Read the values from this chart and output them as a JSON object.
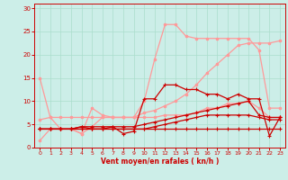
{
  "background_color": "#cceee8",
  "grid_color": "#aaddcc",
  "line_color_light": "#ff8888",
  "line_color_dark": "#dd0000",
  "xlabel": "Vent moyen/en rafales ( kn/h )",
  "xlabel_color": "#cc0000",
  "tick_color": "#cc0000",
  "xlim": [
    -0.5,
    23.5
  ],
  "ylim": [
    0,
    31
  ],
  "yticks": [
    0,
    5,
    10,
    15,
    20,
    25,
    30
  ],
  "xticks": [
    0,
    1,
    2,
    3,
    4,
    5,
    6,
    7,
    8,
    9,
    10,
    11,
    12,
    13,
    14,
    15,
    16,
    17,
    18,
    19,
    20,
    21,
    22,
    23
  ],
  "lines": [
    {
      "y": [
        1.5,
        4.0,
        4.0,
        4.0,
        3.0,
        4.5,
        6.5,
        6.5,
        6.5,
        6.5,
        10.0,
        19.0,
        26.5,
        26.5,
        24.0,
        23.5,
        23.5,
        23.5,
        23.5,
        23.5,
        23.5,
        21.0,
        8.5,
        8.5
      ],
      "color": "#ff9999",
      "lw": 0.9,
      "marker": "o",
      "ms": 1.8,
      "zorder": 2
    },
    {
      "y": [
        15.0,
        6.5,
        4.0,
        4.0,
        3.0,
        8.5,
        7.0,
        6.5,
        6.5,
        6.5,
        6.5,
        6.5,
        7.0,
        7.0,
        7.0,
        7.5,
        8.5,
        8.5,
        9.5,
        9.5,
        10.0,
        8.5,
        6.5,
        6.5
      ],
      "color": "#ff9999",
      "lw": 0.9,
      "marker": "o",
      "ms": 1.8,
      "zorder": 2
    },
    {
      "y": [
        6.0,
        6.5,
        6.5,
        6.5,
        6.5,
        6.5,
        6.5,
        6.5,
        6.5,
        6.5,
        7.5,
        8.0,
        9.0,
        10.0,
        11.5,
        13.5,
        16.0,
        18.0,
        20.0,
        22.0,
        22.5,
        22.5,
        22.5,
        23.0
      ],
      "color": "#ff9999",
      "lw": 0.9,
      "marker": "o",
      "ms": 1.8,
      "zorder": 2
    },
    {
      "y": [
        4.0,
        4.0,
        4.0,
        4.0,
        4.5,
        4.0,
        4.0,
        4.5,
        3.0,
        3.5,
        10.5,
        10.5,
        13.5,
        13.5,
        12.5,
        12.5,
        11.5,
        11.5,
        10.5,
        11.5,
        10.5,
        10.5,
        2.5,
        6.5
      ],
      "color": "#cc0000",
      "lw": 0.9,
      "marker": "+",
      "ms": 3.0,
      "zorder": 3
    },
    {
      "y": [
        4.0,
        4.0,
        4.0,
        4.0,
        4.5,
        4.5,
        4.5,
        4.5,
        4.5,
        4.5,
        5.0,
        5.5,
        6.0,
        6.5,
        7.0,
        7.5,
        8.0,
        8.5,
        9.0,
        9.5,
        10.0,
        7.0,
        6.5,
        6.5
      ],
      "color": "#cc0000",
      "lw": 0.9,
      "marker": "+",
      "ms": 3.0,
      "zorder": 3
    },
    {
      "y": [
        4.0,
        4.0,
        4.0,
        4.0,
        4.0,
        4.0,
        4.0,
        4.0,
        4.0,
        4.0,
        4.0,
        4.5,
        5.0,
        5.5,
        6.0,
        6.5,
        7.0,
        7.0,
        7.0,
        7.0,
        7.0,
        6.5,
        6.0,
        6.0
      ],
      "color": "#cc0000",
      "lw": 0.9,
      "marker": "+",
      "ms": 3.0,
      "zorder": 3
    },
    {
      "y": [
        4.0,
        4.0,
        4.0,
        4.0,
        4.0,
        4.0,
        4.0,
        4.0,
        4.0,
        4.0,
        4.0,
        4.0,
        4.0,
        4.0,
        4.0,
        4.0,
        4.0,
        4.0,
        4.0,
        4.0,
        4.0,
        4.0,
        4.0,
        4.0
      ],
      "color": "#cc0000",
      "lw": 0.9,
      "marker": "+",
      "ms": 3.0,
      "zorder": 3
    }
  ]
}
